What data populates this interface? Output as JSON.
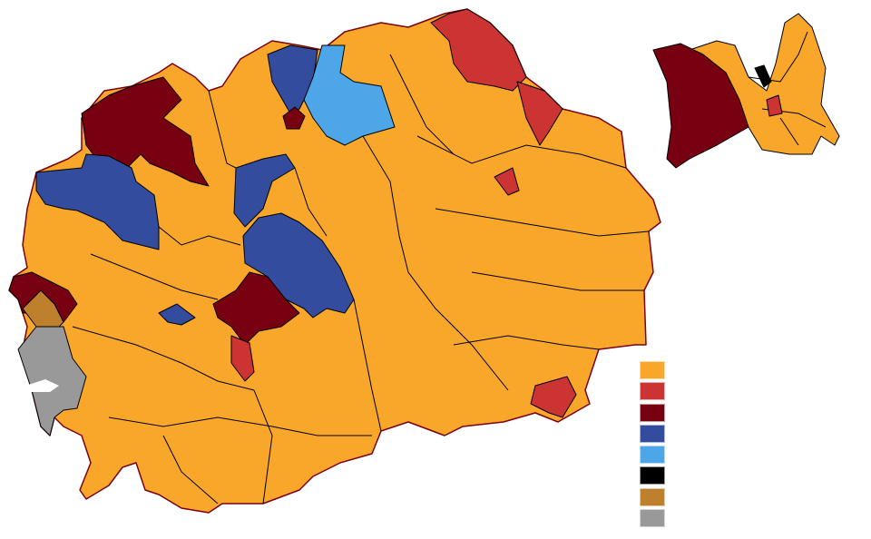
{
  "map": {
    "colors": {
      "orange": "#F9A72B",
      "red": "#CC3333",
      "dark_red": "#770011",
      "blue": "#334C9E",
      "light_blue": "#4DA6E8",
      "black": "#000000",
      "brown": "#BF802E",
      "gray": "#999999"
    }
  },
  "legend": {
    "swatches": [
      "#F9A72B",
      "#CC3333",
      "#770011",
      "#334C9E",
      "#4DA6E8",
      "#000000",
      "#BF802E",
      "#999999"
    ]
  }
}
